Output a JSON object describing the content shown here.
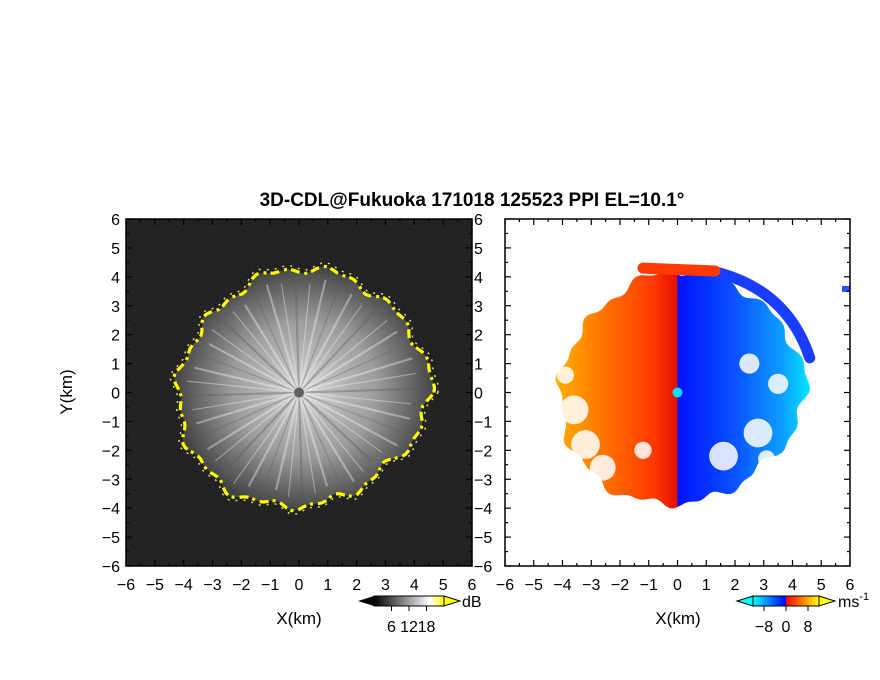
{
  "chart_data": [
    {
      "type": "heatmap",
      "title": "3D-CDL@Fukuoka 171018 125523 PPI EL=10.1°",
      "variable": "backscatter intensity",
      "xlabel": "X(km)",
      "ylabel": "Y(km)",
      "xlim": [
        -6,
        6
      ],
      "ylim": [
        -6,
        6
      ],
      "x_ticks": [
        "-6",
        "-5",
        "-4",
        "-3",
        "-2",
        "-1",
        "0",
        "1",
        "2",
        "3",
        "4",
        "5",
        "6"
      ],
      "y_ticks": [
        "-6",
        "-5",
        "-4",
        "-3",
        "-2",
        "-1",
        "0",
        "1",
        "2",
        "3",
        "4",
        "5",
        "6"
      ],
      "colorbar": {
        "label": "dB",
        "ticks": [
          "6",
          "12",
          "18"
        ],
        "range": [
          0,
          24
        ],
        "colors": [
          "#000000",
          "#ffffff",
          "#ffff00"
        ]
      },
      "echo_boundary_radius_km": {
        "north": 4.3,
        "northeast": 4.3,
        "east": 4.6,
        "southeast": 3.9,
        "south": 3.9,
        "southwest": 4.2,
        "west": 4.2,
        "northwest": 4.0
      },
      "grid": false
    },
    {
      "type": "heatmap",
      "variable": "radial velocity",
      "xlabel": "X(km)",
      "xlim": [
        -6,
        6
      ],
      "ylim": [
        -6,
        6
      ],
      "x_ticks": [
        "-6",
        "-5",
        "-4",
        "-3",
        "-2",
        "-1",
        "0",
        "1",
        "2",
        "3",
        "4",
        "5",
        "6"
      ],
      "colorbar": {
        "label": "ms",
        "label_superscript": "-1",
        "ticks": [
          "-8",
          "0",
          "8"
        ],
        "range": [
          -12,
          12
        ],
        "colors": [
          "#00ffff",
          "#0055ff",
          "#0010ff",
          "#e01000",
          "#ff7700",
          "#ffff00"
        ]
      },
      "velocity_range_ms": [
        -9,
        9
      ],
      "zero_line": "x=0",
      "grid": false
    }
  ]
}
